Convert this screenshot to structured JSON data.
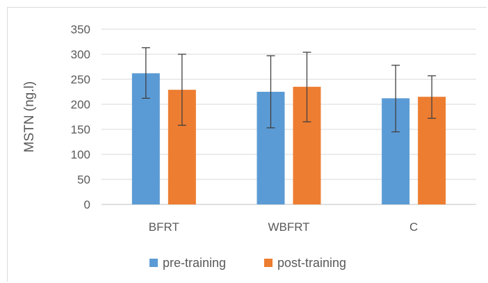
{
  "chart_data": {
    "type": "bar",
    "title": "",
    "xlabel": "",
    "ylabel": "MSTN (ng.l)",
    "ylim": [
      0,
      350
    ],
    "yticks": [
      0,
      50,
      100,
      150,
      200,
      250,
      300,
      350
    ],
    "categories": [
      "BFRT",
      "WBFRT",
      "C"
    ],
    "series": [
      {
        "name": "pre-training",
        "color": "#5b9bd5",
        "values": [
          262,
          225,
          212
        ],
        "error": [
          [
            212,
            313
          ],
          [
            153,
            297
          ],
          [
            145,
            278
          ]
        ]
      },
      {
        "name": "post-training",
        "color": "#ed7d31",
        "values": [
          229,
          235,
          215
        ],
        "error": [
          [
            158,
            300
          ],
          [
            165,
            304
          ],
          [
            172,
            257
          ]
        ]
      }
    ],
    "grid": true,
    "legend": "bottom",
    "error_bars": true
  }
}
